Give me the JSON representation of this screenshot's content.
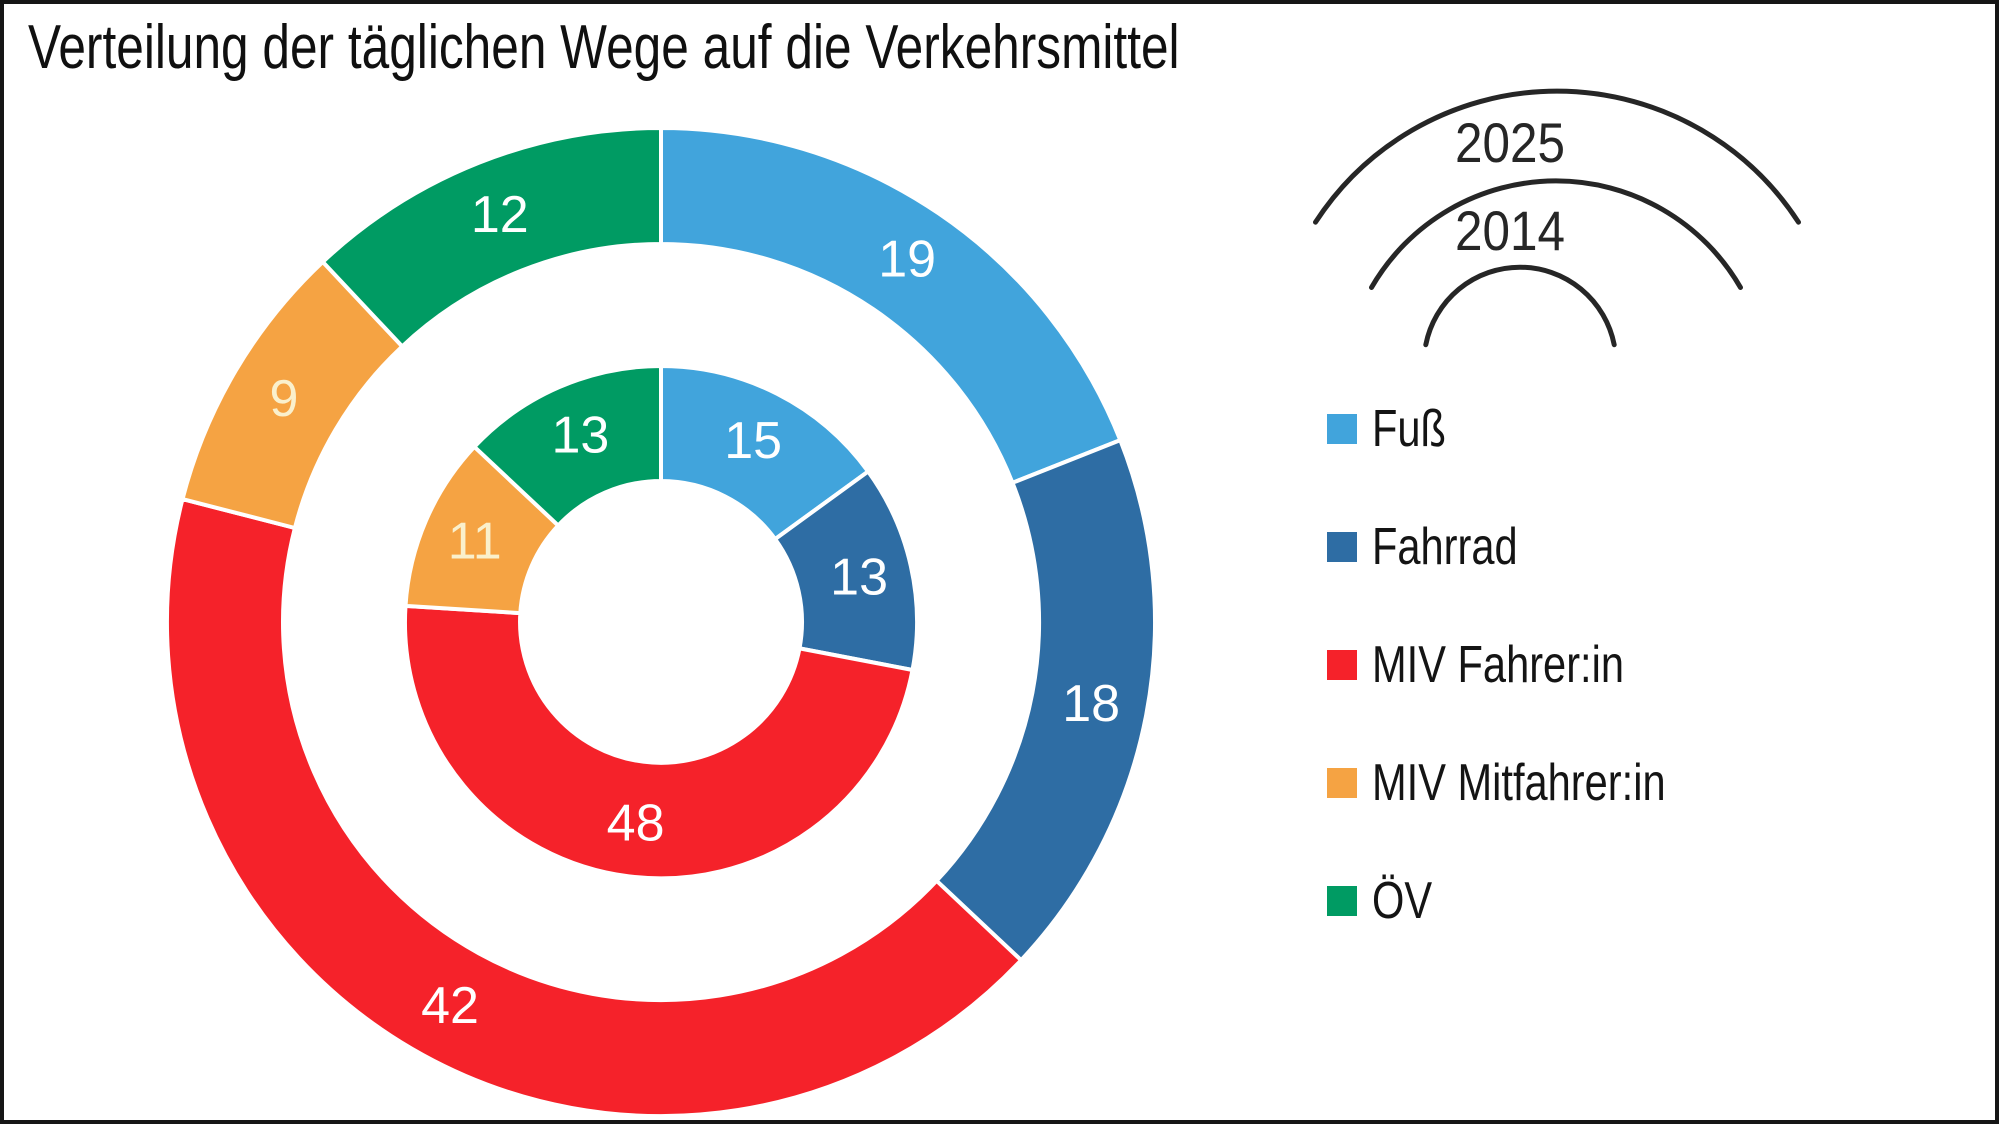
{
  "title": "Verteilung der täglichen Wege auf die Verkehrsmittel",
  "chart_data": {
    "type": "pie",
    "subtype": "nested-donut",
    "title": "Verteilung der täglichen Wege auf die Verkehrsmittel",
    "categories": [
      "Fuß",
      "Fahrrad",
      "MIV Fahrer:in",
      "MIV Mitfahrer:in",
      "ÖV"
    ],
    "colors": [
      "#41A4DC",
      "#2E6DA4",
      "#F5222A",
      "#F5A343",
      "#009B63"
    ],
    "slice_label_colors": [
      "#FFFFFF",
      "#FFFFFF",
      "#FFFFFF",
      "#FAF0CC",
      "#FFFFFF"
    ],
    "series": [
      {
        "name": "2025",
        "ring": "outer",
        "values": [
          19,
          18,
          42,
          9,
          12
        ]
      },
      {
        "name": "2014",
        "ring": "inner",
        "values": [
          15,
          13,
          48,
          11,
          13
        ]
      }
    ],
    "start_angle_deg": 0,
    "direction": "clockwise",
    "legend_position": "right",
    "ring_label_arc_color": "#262626"
  },
  "legend": {
    "items": [
      {
        "label": "Fuß",
        "color": "#41A4DC"
      },
      {
        "label": "Fahrrad",
        "color": "#2E6DA4"
      },
      {
        "label": "MIV Fahrer:in",
        "color": "#F5222A"
      },
      {
        "label": "MIV Mitfahrer:in",
        "color": "#F5A343"
      },
      {
        "label": "ÖV",
        "color": "#009B63"
      }
    ]
  }
}
